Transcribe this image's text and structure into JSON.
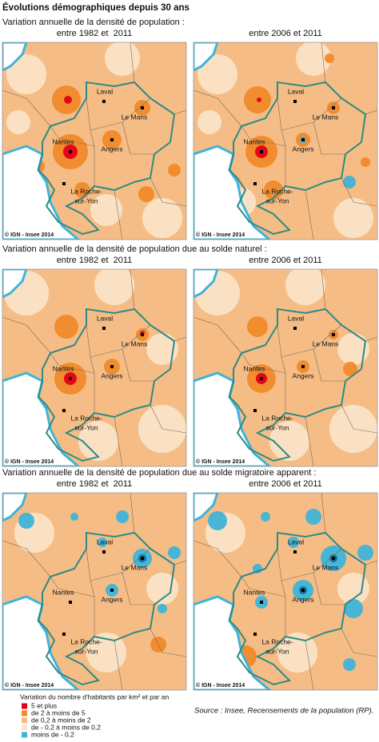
{
  "header": {
    "title": "Évolutions démographiques depuis 30 ans"
  },
  "sections": [
    {
      "title": "Variation annuelle de la densité de population :",
      "panels": [
        {
          "subtitle": "entre 1982 et  2011"
        },
        {
          "subtitle": "entre 2006 et 2011"
        }
      ]
    },
    {
      "title": "Variation annuelle de la densité de population due au solde naturel :",
      "panels": [
        {
          "subtitle": "entre 1982 et  2011"
        },
        {
          "subtitle": "entre 2006 et 2011"
        }
      ]
    },
    {
      "title": "Variation annuelle de la densité de population due au solde migratoire apparent :",
      "panels": [
        {
          "subtitle": "entre 1982 et  2011"
        },
        {
          "subtitle": "entre 2006 et 2011"
        }
      ]
    }
  ],
  "map_labels": {
    "cities": [
      "Laval",
      "Le Mans",
      "Nantes",
      "Angers",
      "La Roche-",
      "sur-Yon"
    ],
    "credit": "© IGN - Insee 2014"
  },
  "legend": {
    "title": "Variation du nombre d'habitants par km² et par an",
    "items": [
      {
        "label": "5 et plus",
        "color": "#e2001a"
      },
      {
        "label": "de 2 à moins de 5",
        "color": "#f08a2a"
      },
      {
        "label": "de 0,2 à moins de 2",
        "color": "#f5bd85"
      },
      {
        "label": "de - 0,2 à moins de 0,2",
        "color": "#fbe3c6"
      },
      {
        "label": "moins de - 0,2",
        "color": "#3fb3d8"
      }
    ]
  },
  "source": "Source : Insee, Recensements de la population (RP)."
}
